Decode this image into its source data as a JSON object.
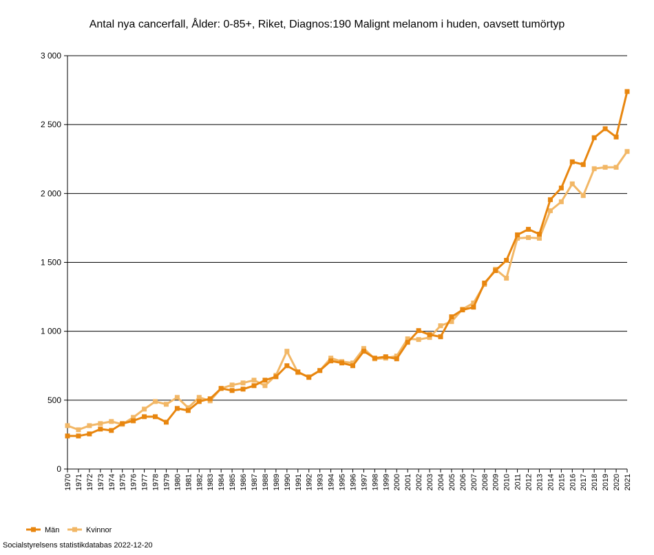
{
  "chart_data": {
    "type": "line",
    "title": "Antal nya cancerfall, Ålder: 0-85+, Riket, Diagnos:190 Malignt melanom i huden, oavsett tumörtyp",
    "xlabel": "",
    "ylabel": "",
    "ylim": [
      0,
      3000
    ],
    "yticks": [
      0,
      500,
      1000,
      1500,
      2000,
      2500,
      3000
    ],
    "ytick_labels": [
      "0",
      "500",
      "1 000",
      "1 500",
      "2 000",
      "2 500",
      "3 000"
    ],
    "grid": true,
    "legend_position": "bottom-left",
    "x": [
      "1970",
      "1971",
      "1972",
      "1973",
      "1974",
      "1975",
      "1976",
      "1977",
      "1978",
      "1979",
      "1980",
      "1981",
      "1982",
      "1983",
      "1984",
      "1985",
      "1986",
      "1987",
      "1988",
      "1989",
      "1990",
      "1991",
      "1992",
      "1993",
      "1994",
      "1995",
      "1996",
      "1997",
      "1998",
      "1999",
      "2000",
      "2001",
      "2002",
      "2003",
      "2004",
      "2005",
      "2006",
      "2007",
      "2008",
      "2009",
      "2010",
      "2011",
      "2012",
      "2013",
      "2014",
      "2015",
      "2016",
      "2017",
      "2018",
      "2019",
      "2020",
      "2021"
    ],
    "series": [
      {
        "name": "Män",
        "color": "#e8860f",
        "values": [
          240,
          240,
          255,
          290,
          280,
          330,
          350,
          380,
          380,
          340,
          440,
          425,
          490,
          510,
          585,
          570,
          580,
          605,
          645,
          670,
          750,
          705,
          665,
          715,
          785,
          770,
          750,
          855,
          805,
          815,
          800,
          920,
          1005,
          975,
          960,
          1105,
          1155,
          1175,
          1350,
          1440,
          1515,
          1700,
          1740,
          1705,
          1955,
          2040,
          2230,
          2210,
          2405,
          2470,
          2410,
          2740
        ]
      },
      {
        "name": "Kvinnor",
        "color": "#f2b766",
        "values": [
          315,
          285,
          315,
          330,
          345,
          325,
          375,
          435,
          490,
          470,
          520,
          445,
          520,
          495,
          585,
          610,
          625,
          645,
          605,
          680,
          855,
          700,
          670,
          715,
          805,
          780,
          770,
          875,
          800,
          805,
          820,
          945,
          940,
          955,
          1040,
          1070,
          1160,
          1205,
          1340,
          1450,
          1385,
          1675,
          1680,
          1675,
          1875,
          1940,
          2070,
          1985,
          2180,
          2190,
          2190,
          2305
        ]
      }
    ]
  },
  "footer": {
    "source": "Socialstyrelsens statistikdatabas 2022-12-20"
  }
}
